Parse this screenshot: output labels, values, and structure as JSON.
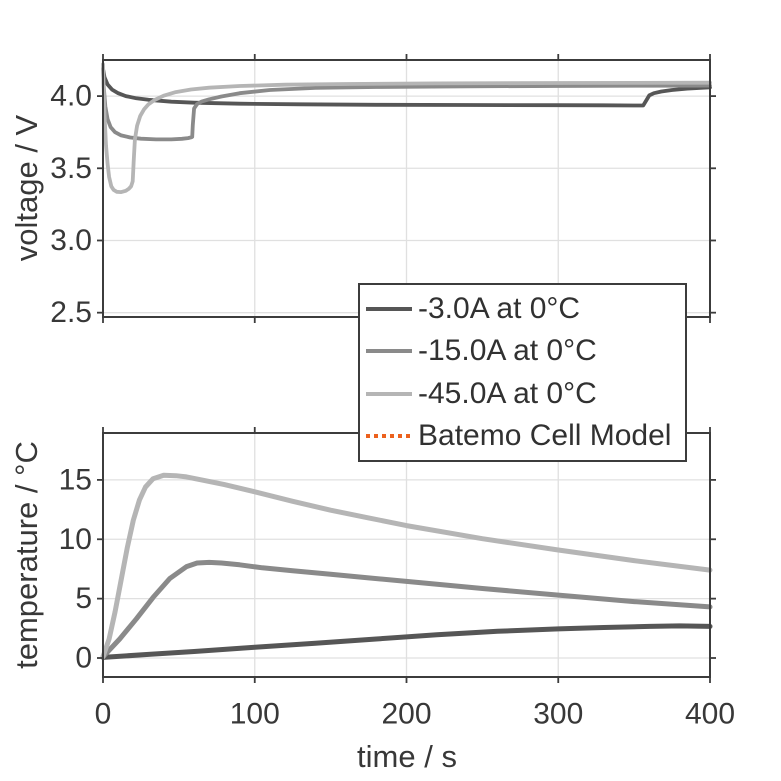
{
  "figure": {
    "background": "#ffffff",
    "colors": {
      "grid": "#e0e0e0",
      "axis": "#3c3c3c",
      "text": "#383838"
    }
  },
  "legend": {
    "items": [
      {
        "label": "-3.0A at 0°C",
        "color": "#565656",
        "style": "solid"
      },
      {
        "label": "-15.0A at 0°C",
        "color": "#8a8a8a",
        "style": "solid"
      },
      {
        "label": "-45.0A at 0°C",
        "color": "#b5b5b5",
        "style": "solid"
      },
      {
        "label": "Batemo Cell Model",
        "color": "#ec611d",
        "style": "dotted"
      }
    ]
  },
  "chart_data": [
    {
      "id": "voltage-plot",
      "type": "line",
      "title": "",
      "xlabel": "",
      "ylabel": "voltage / V",
      "xlim": [
        0,
        400
      ],
      "ylim": [
        2.47,
        4.25
      ],
      "xticks": [
        0,
        100,
        200,
        300,
        400
      ],
      "xtick_labels": [
        "0",
        "100",
        "200",
        "300",
        "400"
      ],
      "show_x_tick_labels": false,
      "yticks": [
        2.5,
        3.0,
        3.5,
        4.0
      ],
      "ytick_labels": [
        "2.5",
        "3.0",
        "3.5",
        "4.0"
      ],
      "grid": true,
      "legend_position": "below-right-overlapping",
      "series": [
        {
          "name": "-3.0A at 0°C",
          "color": "#565656",
          "x": [
            0,
            1,
            3,
            6,
            10,
            15,
            22,
            30,
            45,
            60,
            90,
            130,
            180,
            240,
            300,
            330,
            350,
            356,
            358,
            360,
            363,
            368,
            375,
            385,
            400
          ],
          "y": [
            4.19,
            4.13,
            4.08,
            4.045,
            4.02,
            4.0,
            3.985,
            3.974,
            3.961,
            3.954,
            3.947,
            3.943,
            3.94,
            3.938,
            3.937,
            3.936,
            3.935,
            3.935,
            3.97,
            4.005,
            4.02,
            4.032,
            4.042,
            4.052,
            4.06
          ]
        },
        {
          "name": "-15.0A at 0°C",
          "color": "#8a8a8a",
          "x": [
            0,
            0.5,
            1.5,
            3,
            5,
            8,
            12,
            18,
            25,
            35,
            45,
            52,
            56,
            58,
            58.8,
            59.2,
            60,
            62,
            65,
            70,
            78,
            90,
            110,
            140,
            180,
            240,
            300,
            360,
            400
          ],
          "y": [
            4.19,
            4.06,
            3.93,
            3.84,
            3.785,
            3.75,
            3.728,
            3.713,
            3.705,
            3.7,
            3.7,
            3.704,
            3.709,
            3.714,
            3.717,
            3.8,
            3.915,
            3.945,
            3.962,
            3.978,
            3.997,
            4.02,
            4.042,
            4.057,
            4.063,
            4.068,
            4.07,
            4.072,
            4.073
          ]
        },
        {
          "name": "-45.0A at 0°C",
          "color": "#b5b5b5",
          "x": [
            0,
            0.3,
            1,
            2,
            3,
            4,
            5.5,
            7,
            9,
            12,
            15,
            17,
            18.5,
            19,
            19.6,
            20.2,
            21,
            22.5,
            24.5,
            27,
            30,
            34,
            40,
            48,
            58,
            70,
            90,
            120,
            160,
            220,
            300,
            400
          ],
          "y": [
            4.22,
            4.08,
            3.87,
            3.66,
            3.53,
            3.44,
            3.375,
            3.35,
            3.337,
            3.335,
            3.344,
            3.358,
            3.375,
            3.39,
            3.41,
            3.55,
            3.7,
            3.795,
            3.862,
            3.908,
            3.943,
            3.973,
            4.003,
            4.028,
            4.046,
            4.058,
            4.07,
            4.079,
            4.084,
            4.088,
            4.091,
            4.093
          ]
        }
      ]
    },
    {
      "id": "temperature-plot",
      "type": "line",
      "title": "",
      "xlabel": "time / s",
      "ylabel": "temperature / °C",
      "xlim": [
        0,
        400
      ],
      "ylim": [
        -1.6,
        18.95
      ],
      "xticks": [
        0,
        100,
        200,
        300,
        400
      ],
      "xtick_labels": [
        "0",
        "100",
        "200",
        "300",
        "400"
      ],
      "show_x_tick_labels": true,
      "yticks": [
        0,
        5,
        10,
        15
      ],
      "ytick_labels": [
        "0",
        "5",
        "10",
        "15"
      ],
      "grid": true,
      "series": [
        {
          "name": "-3.0A at 0°C",
          "color": "#565656",
          "x": [
            0,
            30,
            60,
            100,
            140,
            180,
            220,
            260,
            300,
            330,
            360,
            380,
            400
          ],
          "y": [
            0.05,
            0.3,
            0.55,
            0.9,
            1.25,
            1.6,
            1.95,
            2.25,
            2.45,
            2.57,
            2.66,
            2.7,
            2.66
          ]
        },
        {
          "name": "-15.0A at 0°C",
          "color": "#8a8a8a",
          "x": [
            0,
            11,
            22,
            33,
            44,
            55,
            62,
            70,
            78,
            90,
            105,
            125,
            150,
            175,
            200,
            250,
            300,
            350,
            400
          ],
          "y": [
            0.1,
            1.6,
            3.3,
            5.1,
            6.7,
            7.7,
            8.0,
            8.05,
            8.0,
            7.85,
            7.6,
            7.35,
            7.05,
            6.75,
            6.45,
            5.85,
            5.3,
            4.75,
            4.3
          ]
        },
        {
          "name": "-45.0A at 0°C",
          "color": "#b5b5b5",
          "x": [
            0,
            4,
            8,
            12,
            16,
            20,
            24,
            28,
            33,
            40,
            48,
            55,
            65,
            80,
            100,
            125,
            150,
            175,
            200,
            250,
            300,
            350,
            400
          ],
          "y": [
            0.1,
            1.6,
            3.9,
            6.6,
            9.3,
            11.6,
            13.3,
            14.4,
            15.1,
            15.4,
            15.35,
            15.25,
            15.0,
            14.6,
            14.0,
            13.2,
            12.45,
            11.8,
            11.15,
            10.05,
            9.1,
            8.2,
            7.4
          ]
        }
      ]
    }
  ]
}
